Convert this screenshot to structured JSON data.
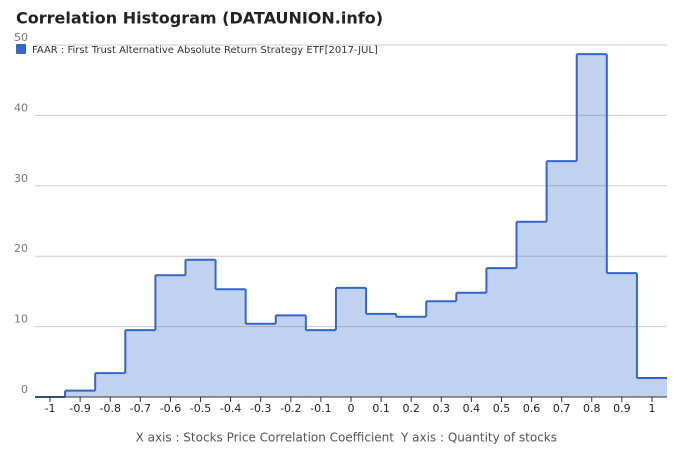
{
  "chart_data": {
    "type": "histogram",
    "title": "Correlation Histogram (DATAUNION.info)",
    "x_label": "X axis : Stocks Price Correlation Coefficient",
    "y_label": "Y axis : Quantity of stocks",
    "series": [
      {
        "name": "FAAR : First Trust Alternative Absolute Return Strategy ETF[2017-JUL]",
        "color": "#3366cc"
      }
    ],
    "bins": [
      -1.05,
      -0.95,
      -0.85,
      -0.75,
      -0.65,
      -0.55,
      -0.45,
      -0.35,
      -0.25,
      -0.15,
      -0.05,
      0.05,
      0.15,
      0.25,
      0.35,
      0.45,
      0.55,
      0.65,
      0.75,
      0.85,
      0.95,
      1.05
    ],
    "counts": [
      0,
      0.9,
      3.4,
      9.5,
      17.3,
      19.5,
      15.3,
      10.4,
      11.6,
      9.5,
      15.5,
      11.8,
      11.4,
      13.6,
      14.8,
      18.3,
      24.9,
      33.5,
      48.7,
      17.6,
      2.7
    ],
    "xlim": [
      -1.05,
      1.05
    ],
    "xticks": [
      -1,
      -0.9,
      -0.8,
      -0.7,
      -0.6,
      -0.5,
      -0.4,
      -0.3,
      -0.2,
      -0.1,
      0,
      0.1,
      0.2,
      0.3,
      0.4,
      0.5,
      0.6,
      0.7,
      0.8,
      0.9,
      1
    ],
    "ylim": [
      0,
      50
    ],
    "yticks": [
      0,
      10,
      20,
      30,
      40,
      50
    ],
    "grid": true,
    "legend": "top"
  }
}
